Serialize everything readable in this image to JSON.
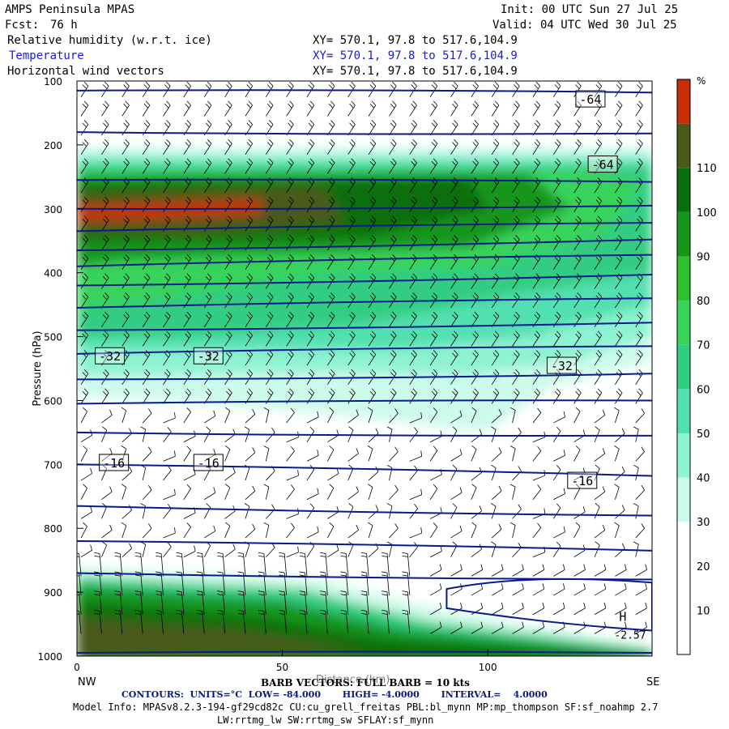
{
  "header": {
    "title": "AMPS Peninsula MPAS",
    "init": "Init: 00 UTC Sun 27 Jul 25",
    "fcst_label": "Fcst:",
    "fcst_value": "76 h",
    "valid": "Valid: 04 UTC Wed 30 Jul 25",
    "fields": [
      {
        "name": "Relative humidity (w.r.t. ice)",
        "xy": "XY= 570.1, 97.8 to 517.6,104.9"
      },
      {
        "name": "Temperature",
        "xy": "XY= 570.1, 97.8 to 517.6,104.9"
      },
      {
        "name": "Horizontal wind vectors",
        "xy": "XY= 570.1, 97.8 to 517.6,104.9"
      }
    ]
  },
  "footer": {
    "barb": "BARB VECTORS: FULL BARB = 10 kts",
    "distance_label": "Distance (km)",
    "contours": "CONTOURS:  UNITS=°C  LOW= -84.000       HIGH= -4.0000       INTERVAL=    4.0000",
    "model_info": "Model Info: MPASv8.2.3-194-gf29cd82c CU:cu_grell_freitas PBL:bl_mynn MP:mp_thompson SF:sf_noahmp 2.7",
    "model_info2": "LW:rrtmg_lw SW:rrtmg_sw SFLAY:sf_mynn"
  },
  "colors": {
    "temperature_contour": "#0a1a8c",
    "rh_scale": [
      "#ffffff",
      "#cdfbe9",
      "#8df3d3",
      "#52e0b0",
      "#31cd82",
      "#39d35a",
      "#2fbf2f",
      "#16961a",
      "#0a6e10",
      "#4a5a1a",
      "#c82d0a"
    ]
  },
  "chart_data": {
    "type": "cross-section",
    "xlabel": "",
    "ylabel": "Pressure (hPa)",
    "xlim": [
      0,
      140
    ],
    "ylim": [
      1000,
      100
    ],
    "x_ticks": [
      0,
      50,
      100
    ],
    "y_ticks": [
      100,
      200,
      300,
      400,
      500,
      600,
      700,
      800,
      900,
      1000
    ],
    "endpoints": {
      "left": "NW",
      "right": "SE"
    },
    "colorbar": {
      "unit": "%",
      "ticks": [
        10,
        20,
        30,
        40,
        50,
        60,
        70,
        80,
        90,
        100,
        110
      ],
      "levels": [
        0,
        30,
        40,
        50,
        60,
        70,
        80,
        90,
        100,
        110,
        120
      ]
    },
    "temperature_contours": [
      {
        "p_left": 115,
        "p_right": 118
      },
      {
        "p_left": 180,
        "p_right": 182
      },
      {
        "p_left": 255,
        "p_right": 258
      },
      {
        "p_left": 300,
        "p_right": 295
      },
      {
        "p_left": 335,
        "p_right": 322
      },
      {
        "p_left": 365,
        "p_right": 348
      },
      {
        "p_left": 390,
        "p_right": 372
      },
      {
        "p_left": 420,
        "p_right": 403
      },
      {
        "p_left": 455,
        "p_right": 440
      },
      {
        "p_left": 490,
        "p_right": 478
      },
      {
        "p_left": 527,
        "p_right": 515
      },
      {
        "p_left": 567,
        "p_right": 558
      },
      {
        "p_left": 605,
        "p_right": 600
      },
      {
        "p_left": 650,
        "p_right": 655
      },
      {
        "p_left": 700,
        "p_right": 718
      },
      {
        "p_left": 765,
        "p_right": 780
      },
      {
        "p_left": 820,
        "p_right": 835
      },
      {
        "p_left": 870,
        "p_right": 880
      },
      {
        "p_left": 995,
        "p_right": 995
      }
    ],
    "contour_labels": [
      {
        "text": "-64",
        "x": 125,
        "p": 128
      },
      {
        "text": "-64",
        "x": 128,
        "p": 230
      },
      {
        "text": "-32",
        "x": 8,
        "p": 530
      },
      {
        "text": "-32",
        "x": 32,
        "p": 530
      },
      {
        "text": "-32",
        "x": 118,
        "p": 545
      },
      {
        "text": "-16",
        "x": 9,
        "p": 697
      },
      {
        "text": "-16",
        "x": 32,
        "p": 697
      },
      {
        "text": "-16",
        "x": 123,
        "p": 725
      }
    ],
    "high_marker": {
      "text": "H",
      "value": "-2.57",
      "x": 132,
      "p": 945
    }
  }
}
